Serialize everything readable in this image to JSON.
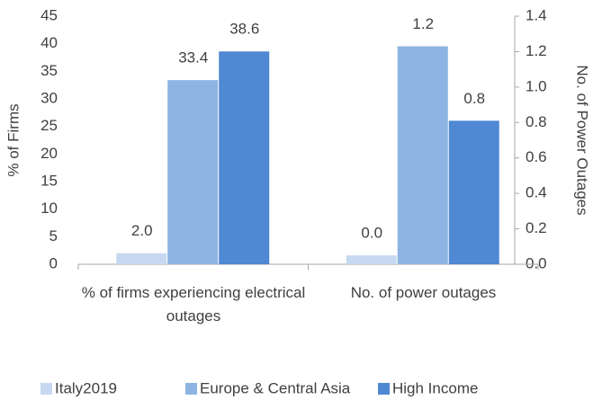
{
  "chart_data": {
    "type": "bar",
    "categories": [
      "% of firms experiencing electrical outages",
      "No. of power outages"
    ],
    "category_axis": [
      "y",
      "y2"
    ],
    "series": [
      {
        "name": "Italy2019",
        "color": "#c6d9f1",
        "values": [
          2.0,
          0.05
        ],
        "value_labels": [
          "2.0",
          "0.0"
        ]
      },
      {
        "name": "Europe & Central Asia",
        "color": "#8db4e2",
        "values": [
          33.4,
          1.23
        ],
        "value_labels": [
          "33.4",
          "1.2"
        ]
      },
      {
        "name": "High Income",
        "color": "#4f88d3",
        "values": [
          38.6,
          0.81
        ],
        "value_labels": [
          "38.6",
          "0.8"
        ]
      }
    ],
    "ylabel": "% of Firms",
    "y2label": "No. of Power Outages",
    "ylim": [
      0,
      45
    ],
    "yticks": [
      0,
      5,
      10,
      15,
      20,
      25,
      30,
      35,
      40,
      45
    ],
    "y2lim": [
      0,
      1.4
    ],
    "y2ticks": [
      {
        "value": 0,
        "label": "0.0"
      },
      {
        "value": 0.2,
        "label": "0.2"
      },
      {
        "value": 0.4,
        "label": "0.4"
      },
      {
        "value": 0.6,
        "label": "0.6"
      },
      {
        "value": 0.8,
        "label": "0.8"
      },
      {
        "value": 1.0,
        "label": "1.0"
      },
      {
        "value": 1.2,
        "label": "1.2"
      },
      {
        "value": 1.4,
        "label": "1.4"
      }
    ],
    "grid": false,
    "legend": "bottom"
  }
}
